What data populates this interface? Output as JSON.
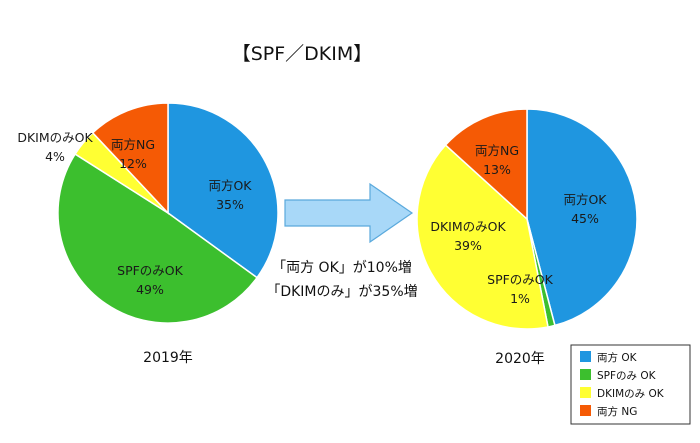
{
  "chart_data": {
    "type": "pie",
    "title": "【SPF／DKIM】",
    "annotations": [
      "「両方 OK」が10%増",
      "「DKIMのみ」が35%増"
    ],
    "legend": {
      "placement": "bottom-right",
      "entries": [
        "両方 OK",
        "SPFのみ OK",
        "DKIMのみ OK",
        "両方 NG"
      ]
    },
    "colors": [
      "#1f96e0",
      "#3cbf2e",
      "#ffff33",
      "#f55a05"
    ],
    "pies": [
      {
        "label": "2019年",
        "slices": [
          {
            "name": "両方OK",
            "value": 35,
            "value_label": "35%"
          },
          {
            "name": "SPFのみOK",
            "value": 49,
            "value_label": "49%"
          },
          {
            "name": "DKIMのみOK",
            "value": 4,
            "value_label": "4%"
          },
          {
            "name": "両方NG",
            "value": 12,
            "value_label": "12%"
          }
        ]
      },
      {
        "label": "2020年",
        "slices": [
          {
            "name": "両方OK",
            "value": 45,
            "value_label": "45%"
          },
          {
            "name": "SPFのみOK",
            "value": 1,
            "value_label": "1%"
          },
          {
            "name": "DKIMのみOK",
            "value": 39,
            "value_label": "39%"
          },
          {
            "name": "両方NG",
            "value": 13,
            "value_label": "13%"
          }
        ]
      }
    ]
  }
}
